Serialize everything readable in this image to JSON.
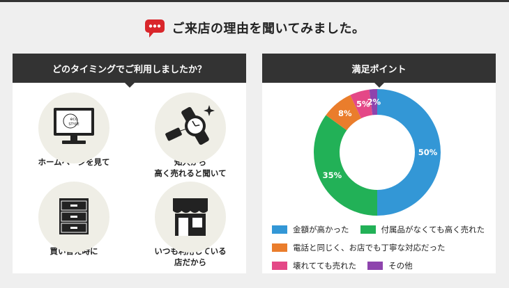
{
  "heading": {
    "title": "ご来店の理由を聞いてみました。",
    "icon": "speech-bubble-icon",
    "icon_color": "#d9262b"
  },
  "left_panel": {
    "title": "どのタイミングでご利用しましたか？",
    "items": [
      {
        "label_lines": [
          "ホームページを見て"
        ],
        "icon": "monitor-icon",
        "logo_text": [
          "eco",
          "STYLE"
        ]
      },
      {
        "label_lines": [
          "知人から",
          "高く売れると聞いて"
        ],
        "icon": "watch-icon"
      },
      {
        "label_lines": [
          "買い替え時に"
        ],
        "icon": "drawer-chest-icon"
      },
      {
        "label_lines": [
          "いつも利用している",
          "店だから"
        ],
        "icon": "store-icon"
      }
    ]
  },
  "right_panel": {
    "title": "満足ポイント"
  },
  "chart_data": {
    "type": "pie",
    "donut": true,
    "labels": [
      "金額が高かった",
      "付属品がなくても高く売れた",
      "電話と同じく、お店でも丁寧な対応だった",
      "壊れてても売れた",
      "その他"
    ],
    "values": [
      50,
      35,
      8,
      5,
      2
    ],
    "value_labels": [
      "50%",
      "35%",
      "8%",
      "5%",
      "2%"
    ],
    "colors": [
      "#3397d6",
      "#22b157",
      "#ea7d2c",
      "#e44887",
      "#8e44ad"
    ],
    "legend_position": "bottom",
    "start_angle": "top",
    "direction": "clockwise"
  }
}
